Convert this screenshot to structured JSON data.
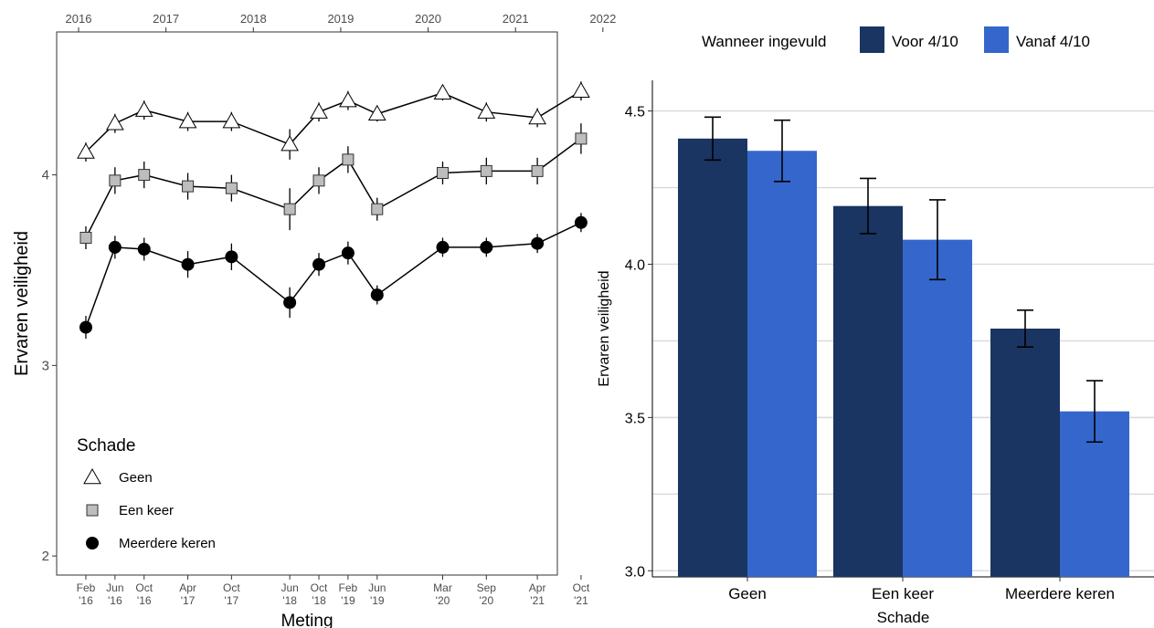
{
  "chart_data": [
    {
      "type": "line",
      "xlabel": "Meting",
      "ylabel": "Ervaren veiligheid",
      "ylim": [
        1.9,
        4.75
      ],
      "yticks": [
        2,
        3,
        4
      ],
      "top_axis_years": [
        "2016",
        "2017",
        "2018",
        "2019",
        "2020",
        "2021",
        "2022"
      ],
      "bottom_tick_months": [
        "Feb",
        "Jun",
        "Oct",
        "Apr",
        "Oct",
        "Jun",
        "Oct",
        "Feb",
        "Jun",
        "Mar",
        "Sep",
        "Apr",
        "Oct"
      ],
      "bottom_tick_years": [
        "'16",
        "'16",
        "'16",
        "'17",
        "'17",
        "'18",
        "'18",
        "'19",
        "'19",
        "'20",
        "'20",
        "'21",
        "'21"
      ],
      "x": [
        "2016-02",
        "2016-06",
        "2016-10",
        "2017-04",
        "2017-10",
        "2018-06",
        "2018-10",
        "2019-02",
        "2019-06",
        "2020-03",
        "2020-09",
        "2021-04",
        "2021-10"
      ],
      "legend_title": "Schade",
      "legend_position": "bottom-left",
      "grid": false,
      "series": [
        {
          "name": "Geen",
          "marker": "triangle-open",
          "values": [
            4.12,
            4.27,
            4.34,
            4.28,
            4.28,
            4.16,
            4.33,
            4.39,
            4.32,
            4.43,
            4.33,
            4.3,
            4.44
          ],
          "err": [
            0.05,
            0.05,
            0.05,
            0.05,
            0.05,
            0.08,
            0.05,
            0.05,
            0.04,
            0.04,
            0.05,
            0.05,
            0.05
          ]
        },
        {
          "name": "Een keer",
          "marker": "square",
          "values": [
            3.67,
            3.97,
            4.0,
            3.94,
            3.93,
            3.82,
            3.97,
            4.08,
            3.82,
            4.01,
            4.02,
            4.02,
            4.19
          ],
          "err": [
            0.06,
            0.07,
            0.07,
            0.07,
            0.07,
            0.11,
            0.07,
            0.07,
            0.06,
            0.06,
            0.07,
            0.07,
            0.08
          ]
        },
        {
          "name": "Meerdere keren",
          "marker": "circle",
          "values": [
            3.2,
            3.62,
            3.61,
            3.53,
            3.57,
            3.33,
            3.53,
            3.59,
            3.37,
            3.62,
            3.62,
            3.64,
            3.75
          ],
          "err": [
            0.06,
            0.06,
            0.06,
            0.07,
            0.07,
            0.08,
            0.06,
            0.06,
            0.05,
            0.05,
            0.05,
            0.05,
            0.05
          ]
        }
      ]
    },
    {
      "type": "bar",
      "xlabel": "Schade",
      "ylabel": "Ervaren veiligheid",
      "ylim": [
        2.98,
        4.6
      ],
      "yticks": [
        "3.0",
        "3.5",
        "4.0",
        "4.5"
      ],
      "grid": true,
      "categories": [
        "Geen",
        "Een keer",
        "Meerdere keren"
      ],
      "legend_title": "Wanneer ingevuld",
      "legend_position": "top",
      "series": [
        {
          "name": "Voor 4/10",
          "color": "#1b3562",
          "values": [
            4.41,
            4.19,
            3.79
          ],
          "err": [
            0.07,
            0.09,
            0.06
          ]
        },
        {
          "name": "Vanaf 4/10",
          "color": "#3566cc",
          "values": [
            4.37,
            4.08,
            3.52
          ],
          "err": [
            0.1,
            0.13,
            0.1
          ]
        }
      ]
    }
  ]
}
